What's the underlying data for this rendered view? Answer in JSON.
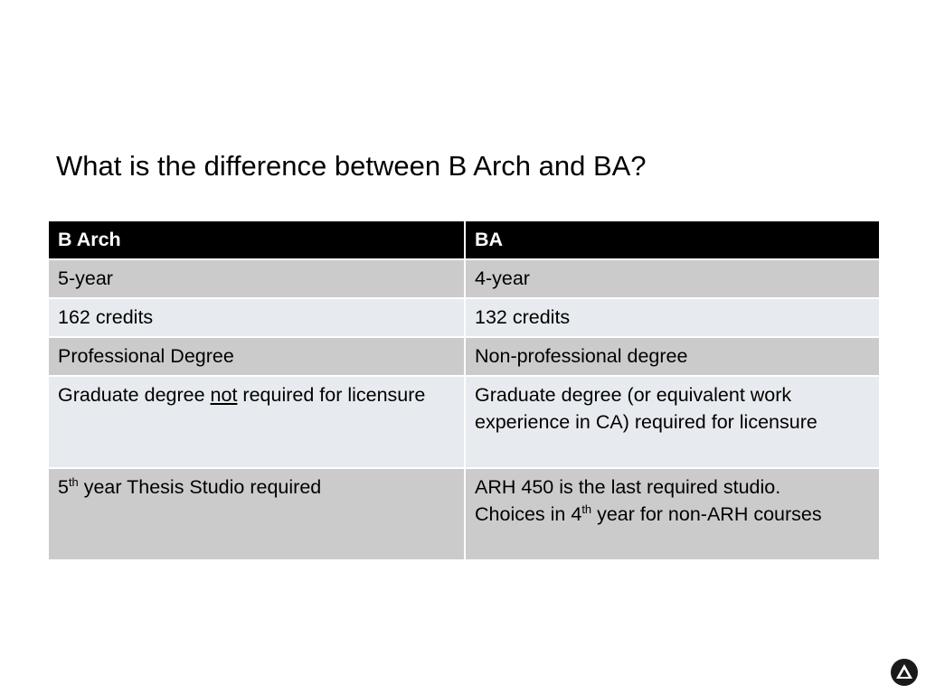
{
  "slide": {
    "title": "What is the difference between B Arch and BA?"
  },
  "table": {
    "headers": [
      "B Arch",
      "BA"
    ],
    "rows": [
      {
        "barch": "5-year",
        "ba": "4-year"
      },
      {
        "barch": "162 credits",
        "ba": "132 credits"
      },
      {
        "barch": "Professional Degree",
        "ba": "Non-professional degree"
      },
      {
        "barch": {
          "before": "Graduate degree ",
          "underlined": "not",
          "after": " required for licensure"
        },
        "ba": "Graduate degree (or equivalent work experience in CA) required for licensure"
      },
      {
        "barch": {
          "pre": "5",
          "sup": "th",
          "post": " year Thesis Studio required"
        },
        "ba": {
          "line1": "ARH 450 is the last required studio.",
          "pre": "Choices in 4",
          "sup": "th",
          "post": " year for non-ARH courses"
        }
      }
    ]
  },
  "logo": {
    "icon": "triangle-logo-icon"
  }
}
